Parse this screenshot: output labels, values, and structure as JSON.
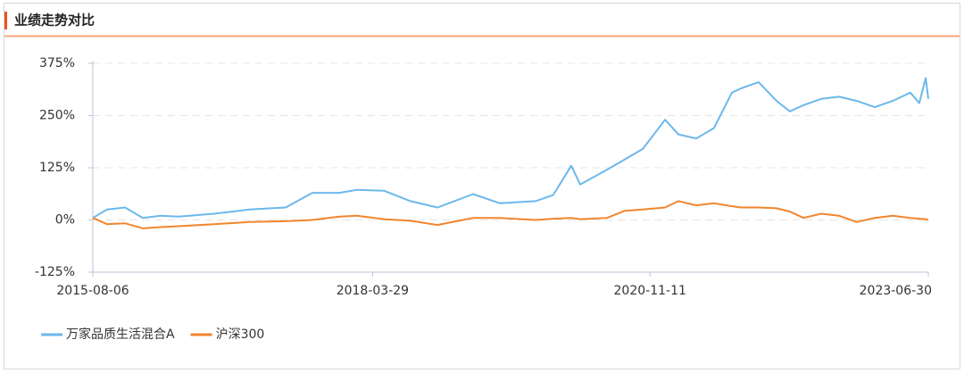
{
  "chart_data": {
    "type": "line",
    "title": "业绩走势对比",
    "x": [
      "2015-08-06",
      "2015-09-24",
      "2015-11-25",
      "2016-01-26",
      "2016-03-27",
      "2016-05-28",
      "2016-09-28",
      "2017-01-29",
      "2017-06-02",
      "2017-09-02",
      "2017-12-04",
      "2018-02-03",
      "2018-05-07",
      "2018-08-07",
      "2018-11-08",
      "2019-03-11",
      "2019-06-12",
      "2019-10-13",
      "2019-12-13",
      "2020-02-13",
      "2020-03-15",
      "2020-06-15",
      "2020-08-16",
      "2020-10-17",
      "2021-01-02",
      "2021-02-17",
      "2021-04-20",
      "2021-06-20",
      "2021-08-21",
      "2021-09-21",
      "2021-11-21",
      "2022-01-22",
      "2022-03-09",
      "2022-04-25",
      "2022-06-25",
      "2022-08-26",
      "2022-10-26",
      "2022-12-27",
      "2023-02-27",
      "2023-04-29",
      "2023-05-30",
      "2023-06-21",
      "2023-06-30"
    ],
    "series": [
      {
        "name": "万家品质生活混合A",
        "color": "#6cb8ec",
        "values": [
          5,
          25,
          30,
          5,
          10,
          8,
          15,
          25,
          30,
          65,
          65,
          72,
          70,
          45,
          30,
          62,
          40,
          45,
          60,
          130,
          85,
          120,
          145,
          170,
          240,
          205,
          195,
          220,
          305,
          315,
          330,
          285,
          260,
          275,
          290,
          295,
          285,
          270,
          285,
          305,
          280,
          340,
          290
        ]
      },
      {
        "name": "沪深300",
        "color": "#f0862e",
        "values": [
          5,
          -10,
          -8,
          -20,
          -17,
          -15,
          -10,
          -5,
          -3,
          0,
          8,
          10,
          2,
          -2,
          -12,
          5,
          5,
          0,
          3,
          5,
          2,
          5,
          22,
          25,
          30,
          45,
          35,
          40,
          33,
          30,
          30,
          28,
          20,
          5,
          15,
          10,
          -5,
          5,
          10,
          5,
          3,
          2,
          0
        ]
      }
    ],
    "xlim": [
      "2015-08-06",
      "2023-06-30"
    ],
    "xticks": [
      "2015-08-06",
      "2018-03-29",
      "2020-11-11",
      "2023-06-30"
    ],
    "ylim": [
      -125,
      375
    ],
    "yticks": [
      {
        "value": -125,
        "label": "-125%"
      },
      {
        "value": 0,
        "label": "0%"
      },
      {
        "value": 125,
        "label": "125%"
      },
      {
        "value": 250,
        "label": "250%"
      },
      {
        "value": 375,
        "label": "375%"
      }
    ],
    "grid": true
  }
}
